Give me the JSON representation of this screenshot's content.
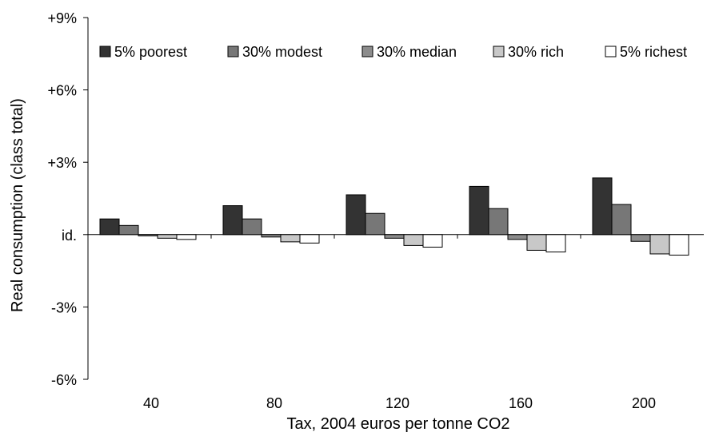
{
  "chart_data": {
    "type": "bar",
    "title": "",
    "xlabel": "Tax, 2004 euros per tonne CO2",
    "ylabel": "Real consumption (class total)",
    "categories": [
      "40",
      "80",
      "120",
      "160",
      "200"
    ],
    "ylim": [
      -6,
      9
    ],
    "yticks": [
      {
        "value": 9,
        "label": "+9%"
      },
      {
        "value": 6,
        "label": "+6%"
      },
      {
        "value": 3,
        "label": "+3%"
      },
      {
        "value": 0,
        "label": "id."
      },
      {
        "value": -3,
        "label": "-3%"
      },
      {
        "value": -6,
        "label": "-6%"
      }
    ],
    "grid": false,
    "legend": "top",
    "series": [
      {
        "name": "5% poorest",
        "color": "#333333",
        "values": [
          0.65,
          1.2,
          1.65,
          2.0,
          2.35
        ]
      },
      {
        "name": "30% modest",
        "color": "#777777",
        "values": [
          0.38,
          0.65,
          0.88,
          1.08,
          1.25
        ]
      },
      {
        "name": "30% median",
        "color": "#8c8c8c",
        "values": [
          -0.05,
          -0.1,
          -0.15,
          -0.2,
          -0.28
        ]
      },
      {
        "name": "30% rich",
        "color": "#c8c8c8",
        "values": [
          -0.15,
          -0.3,
          -0.45,
          -0.65,
          -0.8
        ]
      },
      {
        "name": "5% richest",
        "color": "#ffffff",
        "values": [
          -0.2,
          -0.35,
          -0.52,
          -0.72,
          -0.85
        ]
      }
    ]
  }
}
